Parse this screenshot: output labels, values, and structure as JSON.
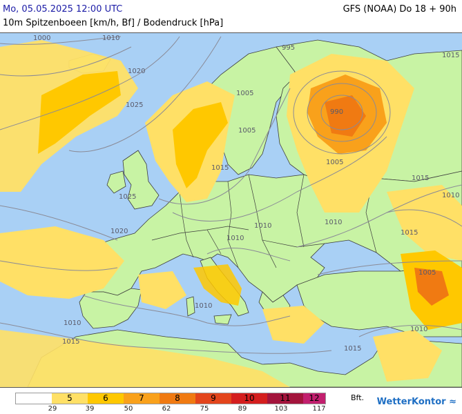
{
  "header": {
    "date": "Mo, 05.05.2025 12:00 UTC",
    "model": "GFS (NOAA) Do 18 + 90h",
    "parameter": "10m Spitzenboeen [km/h, Bf] / Bodendruck [hPa]"
  },
  "pressure_labels": [
    "1000",
    "1010",
    "1020",
    "1025",
    "995",
    "990",
    "1005",
    "1015",
    "1005",
    "1015",
    "1010",
    "1025",
    "1020",
    "1010",
    "1005",
    "1015",
    "1010",
    "1010",
    "1015",
    "1010",
    "1010",
    "1015",
    "1010",
    "1005",
    "1015"
  ],
  "legend": {
    "bft_labels": [
      "",
      "5",
      "6",
      "7",
      "8",
      "9",
      "10",
      "11",
      "12"
    ],
    "kmh_ticks": [
      "29",
      "39",
      "50",
      "62",
      "75",
      "89",
      "103",
      "117"
    ],
    "colors": [
      "#ffffff",
      "#ffe066",
      "#ffc800",
      "#f9a11b",
      "#f07a12",
      "#e3451c",
      "#d41e1e",
      "#a3143c",
      "#c21f6e"
    ],
    "unit": "Bft."
  },
  "colors": {
    "sea": "#a9d0f5",
    "land": "#c8f3a4",
    "border": "#3c3c3c",
    "isobar": "#8a8a96"
  },
  "logo": {
    "text": "WetterKontor"
  }
}
